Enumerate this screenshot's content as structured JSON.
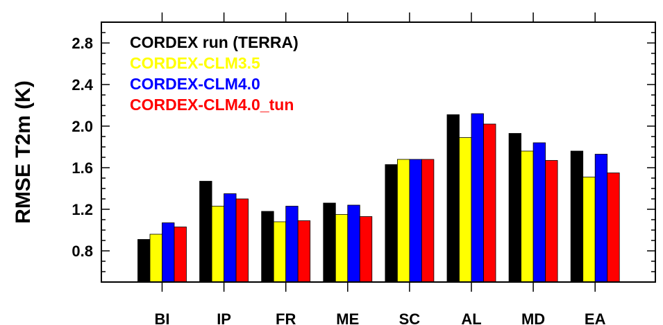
{
  "chart_data": {
    "type": "bar",
    "title": "",
    "xlabel": "",
    "ylabel": "RMSE T2m (K)",
    "ylim": [
      0.5,
      3.0
    ],
    "yticks": [
      "0.8",
      "1.2",
      "1.6",
      "2.0",
      "2.4",
      "2.8"
    ],
    "categories": [
      "BI",
      "IP",
      "FR",
      "ME",
      "SC",
      "AL",
      "MD",
      "EA"
    ],
    "legend_position": "top-left",
    "grid": false,
    "series": [
      {
        "name": "CORDEX run (TERRA)",
        "color": "#000000",
        "values": [
          0.91,
          1.47,
          1.18,
          1.26,
          1.63,
          2.11,
          1.93,
          1.76
        ]
      },
      {
        "name": "CORDEX-CLM3.5",
        "color": "#ffff00",
        "values": [
          0.96,
          1.23,
          1.08,
          1.15,
          1.68,
          1.89,
          1.76,
          1.51
        ]
      },
      {
        "name": "CORDEX-CLM4.0",
        "color": "#0000ff",
        "values": [
          1.07,
          1.35,
          1.23,
          1.24,
          1.68,
          2.12,
          1.84,
          1.73
        ]
      },
      {
        "name": "CORDEX-CLM4.0_tun",
        "color": "#ff0000",
        "values": [
          1.03,
          1.3,
          1.09,
          1.13,
          1.68,
          2.02,
          1.67,
          1.55
        ]
      }
    ]
  }
}
